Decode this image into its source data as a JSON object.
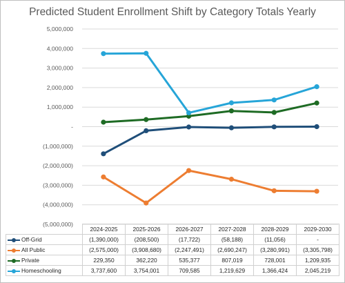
{
  "chart_data": {
    "type": "line",
    "title": "Predicted Student Enrollment Shift by Category Totals Yearly",
    "categories": [
      "2024-2025",
      "2025-2026",
      "2026-2027",
      "2027-2028",
      "2028-2029",
      "2029-2030"
    ],
    "ylim": [
      -5000000,
      5000000
    ],
    "y_ticks": [
      5000000,
      4000000,
      3000000,
      2000000,
      1000000,
      0,
      -1000000,
      -2000000,
      -3000000,
      -4000000,
      -5000000
    ],
    "y_tick_labels": [
      "5,000,000",
      "4,000,000",
      "3,000,000",
      "2,000,000",
      "1,000,000",
      "-",
      "(1,000,000)",
      "(2,000,000)",
      "(3,000,000)",
      "(4,000,000)",
      "(5,000,000)"
    ],
    "grid": true,
    "legend": "data table",
    "series": [
      {
        "name": "Off-Grid",
        "color": "#1f4e79",
        "values": [
          -1390000,
          -208500,
          -17722,
          -58188,
          -11056,
          0
        ],
        "labels": [
          "(1,390,000)",
          "(208,500)",
          "(17,722)",
          "(58,188)",
          "(11,056)",
          "-"
        ]
      },
      {
        "name": "All Public",
        "color": "#ed7d31",
        "values": [
          -2575000,
          -3908680,
          -2247491,
          -2690247,
          -3280991,
          -3305798
        ],
        "labels": [
          "(2,575,000)",
          "(3,908,680)",
          "(2,247,491)",
          "(2,690,247)",
          "(3,280,991)",
          "(3,305,798)"
        ]
      },
      {
        "name": "Private",
        "color": "#1e6b24",
        "values": [
          229350,
          362220,
          535377,
          807019,
          728001,
          1209935
        ],
        "labels": [
          "229,350",
          "362,220",
          "535,377",
          "807,019",
          "728,001",
          "1,209,935"
        ]
      },
      {
        "name": "Homeschooling",
        "color": "#26a5d8",
        "values": [
          3737600,
          3754001,
          709585,
          1219629,
          1366424,
          2045219
        ],
        "labels": [
          "3,737,600",
          "3,754,001",
          "709,585",
          "1,219,629",
          "1,366,424",
          "2,045,219"
        ]
      }
    ]
  }
}
